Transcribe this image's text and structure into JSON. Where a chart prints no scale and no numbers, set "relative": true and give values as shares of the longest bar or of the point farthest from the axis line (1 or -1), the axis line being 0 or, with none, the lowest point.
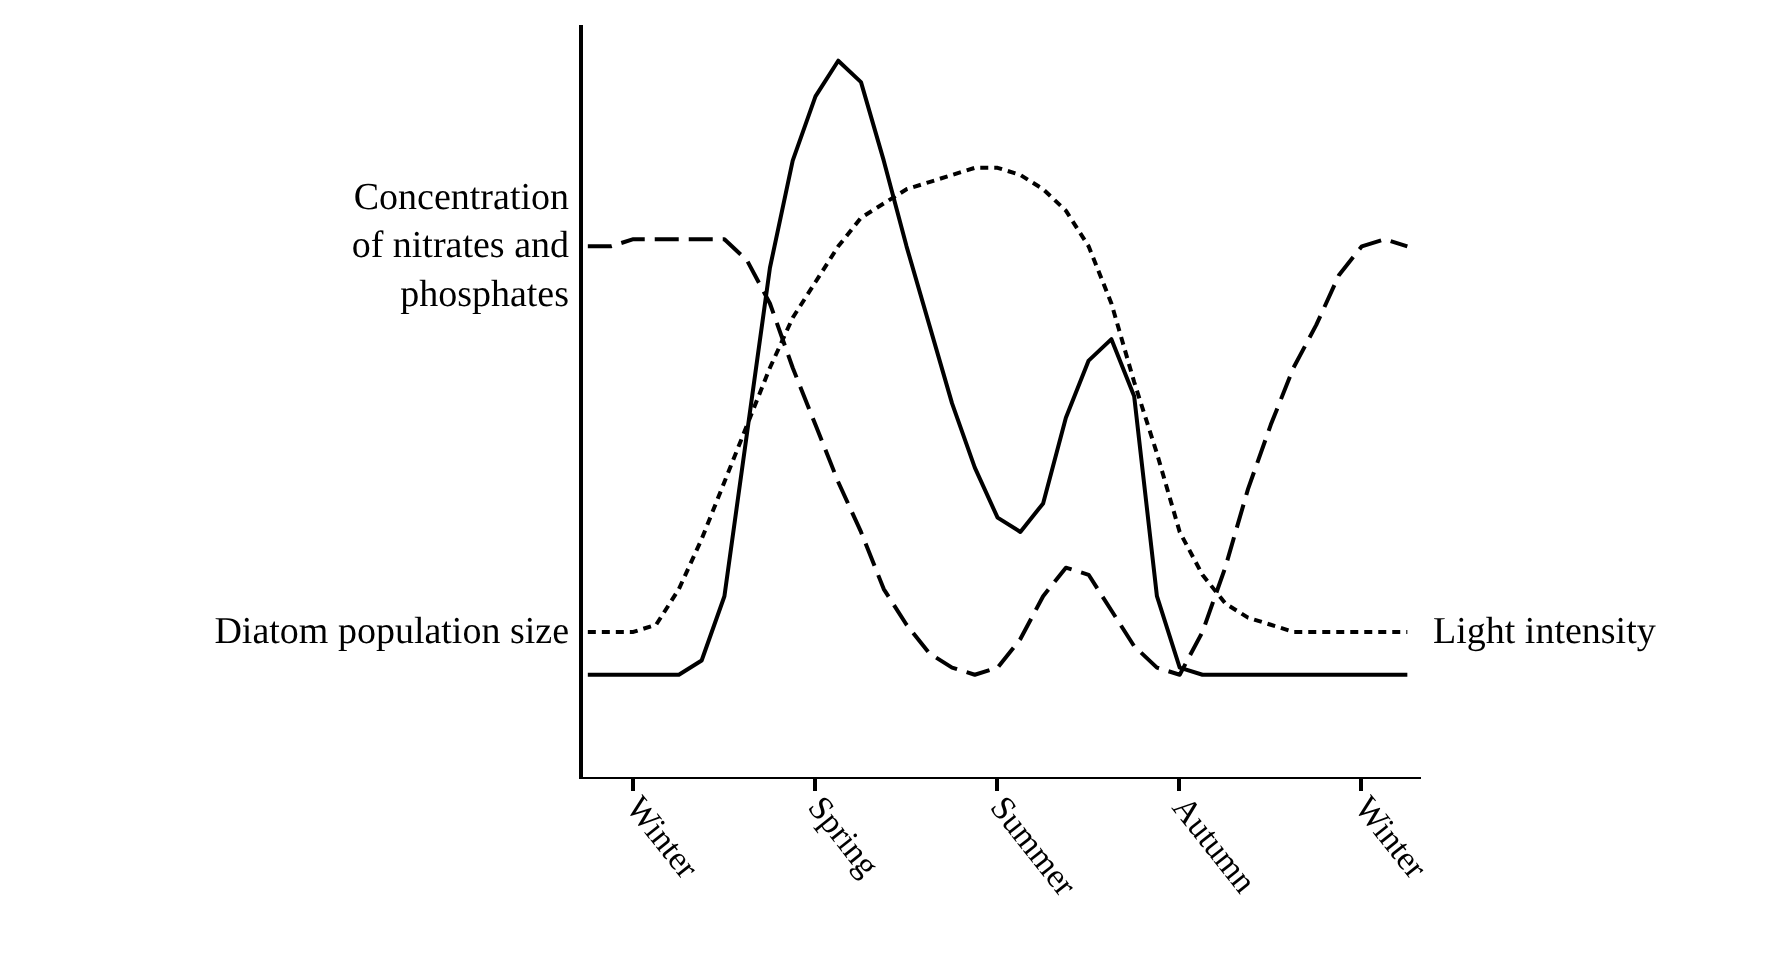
{
  "chart_data": {
    "type": "line",
    "relative": true,
    "categories": [
      null,
      null,
      "Winter",
      null,
      null,
      null,
      null,
      null,
      null,
      null,
      "Spring",
      null,
      null,
      null,
      null,
      null,
      null,
      null,
      "Summer",
      null,
      null,
      null,
      null,
      null,
      null,
      null,
      "Autumn",
      null,
      null,
      null,
      null,
      null,
      null,
      null,
      "Winter",
      null,
      null
    ],
    "series": [
      {
        "color": "#000000",
        "line_style": "solid",
        "values": [
          0.14,
          0.14,
          0.14,
          0.14,
          0.14,
          0.16,
          0.25,
          0.48,
          0.71,
          0.86,
          0.95,
          1,
          0.97,
          0.86,
          0.74,
          0.63,
          0.52,
          0.43,
          0.36,
          0.34,
          0.38,
          0.5,
          0.58,
          0.61,
          0.53,
          0.25,
          0.15,
          0.14,
          0.14,
          0.14,
          0.14,
          0.14,
          0.14,
          0.14,
          0.14,
          0.14,
          0.14
        ]
      },
      {
        "color": "#000000",
        "line_style": "dotted",
        "values": [
          0.2,
          0.2,
          0.2,
          0.21,
          0.26,
          0.33,
          0.41,
          0.49,
          0.57,
          0.64,
          0.69,
          0.74,
          0.78,
          0.8,
          0.82,
          0.83,
          0.84,
          0.85,
          0.85,
          0.84,
          0.82,
          0.79,
          0.74,
          0.66,
          0.55,
          0.45,
          0.34,
          0.28,
          0.24,
          0.22,
          0.21,
          0.2,
          0.2,
          0.2,
          0.2,
          0.2,
          0.2
        ]
      },
      {
        "color": "#000000",
        "line_style": "dashed",
        "values": [
          0.74,
          0.74,
          0.75,
          0.75,
          0.75,
          0.75,
          0.75,
          0.72,
          0.66,
          0.57,
          0.49,
          0.41,
          0.34,
          0.26,
          0.21,
          0.17,
          0.15,
          0.14,
          0.15,
          0.19,
          0.25,
          0.29,
          0.28,
          0.23,
          0.18,
          0.15,
          0.14,
          0.2,
          0.29,
          0.4,
          0.49,
          0.57,
          0.63,
          0.7,
          0.74,
          0.75,
          0.74
        ]
      }
    ],
    "annotations": [
      "Concentration\nof nitrates and\nphosphates",
      "Diatom population size",
      "Light intensity"
    ],
    "grid": false
  }
}
